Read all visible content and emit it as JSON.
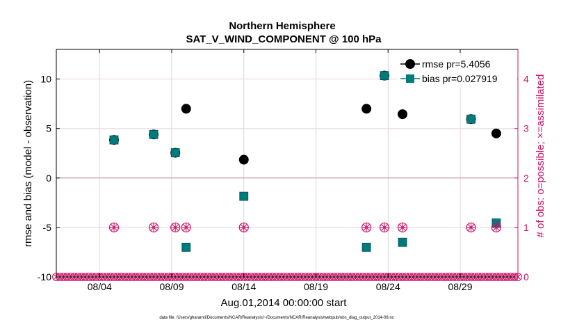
{
  "chart_data": {
    "type": "scatter",
    "title": "Northern Hemisphere",
    "subtitle": "SAT_V_WIND_COMPONENT @ 100 hPa",
    "xlabel": "Aug.01,2014 00:00:00 start",
    "ylabel": "rmse and bias (model - observation)",
    "y2label": "# of obs: o=possible; ×=assimilated",
    "xlim": [
      0,
      32
    ],
    "ylim": [
      -10,
      13
    ],
    "y2lim": [
      0,
      4.6
    ],
    "xticks": [
      3,
      8,
      13,
      18,
      23,
      28
    ],
    "xtick_labels": [
      "08/04",
      "08/09",
      "08/14",
      "08/19",
      "08/24",
      "08/29"
    ],
    "yticks": [
      -10,
      -5,
      0,
      5,
      10
    ],
    "ytick_labels": [
      "-10",
      "-5",
      "0",
      "5",
      "10"
    ],
    "y2ticks": [
      0,
      1,
      2,
      3,
      4
    ],
    "y2tick_labels": [
      "0",
      "1",
      "2",
      "3",
      "4"
    ],
    "grid": true,
    "legend_position": "top-right",
    "series": [
      {
        "name": "rmse pr=5.4056",
        "color": "#000000",
        "marker": "circle",
        "x": [
          4,
          6.75,
          8.25,
          9,
          13,
          21.5,
          22.75,
          24,
          28.75,
          30.5
        ],
        "y": [
          3.85,
          4.4,
          2.55,
          7.0,
          1.85,
          7.0,
          10.35,
          6.45,
          5.95,
          4.5
        ]
      },
      {
        "name": "bias pr=0.027919",
        "color": "#007b7b",
        "marker": "square",
        "x": [
          4,
          6.75,
          8.25,
          9,
          13,
          21.5,
          22.75,
          24,
          28.75,
          30.5
        ],
        "y": [
          3.85,
          4.4,
          2.55,
          -7.0,
          -1.85,
          -7.0,
          10.35,
          -6.5,
          5.95,
          -4.55
        ]
      },
      {
        "name": "obs possible",
        "color": "#cc1166",
        "marker": "circle-open",
        "axis": "right",
        "x": [
          4,
          6.75,
          8.25,
          9,
          13,
          21.5,
          22.75,
          24,
          28.75,
          30.5
        ],
        "y": [
          1,
          1,
          1,
          1,
          1,
          1,
          1,
          1,
          1,
          1
        ]
      },
      {
        "name": "obs assimilated",
        "color": "#cc1166",
        "marker": "x",
        "axis": "right",
        "x": [
          4,
          6.75,
          8.25,
          9,
          13,
          21.5,
          22.75,
          24,
          28.75,
          30.5
        ],
        "y": [
          1,
          1,
          1,
          1,
          1,
          1,
          1,
          1,
          1,
          1
        ]
      }
    ],
    "zero_obs_step": 0.25,
    "colors": {
      "axis_left": "#000000",
      "axis_right": "#cc1166",
      "grid": "#e6d2dc",
      "zero_line": "#c99aaf"
    }
  },
  "footer": "data file: /Users/gharamti/Documents/NCAR/Reanalysis/~/Documents/NCAR/Reanalysis/webpub/obs_diag_output_2014-08.nc"
}
